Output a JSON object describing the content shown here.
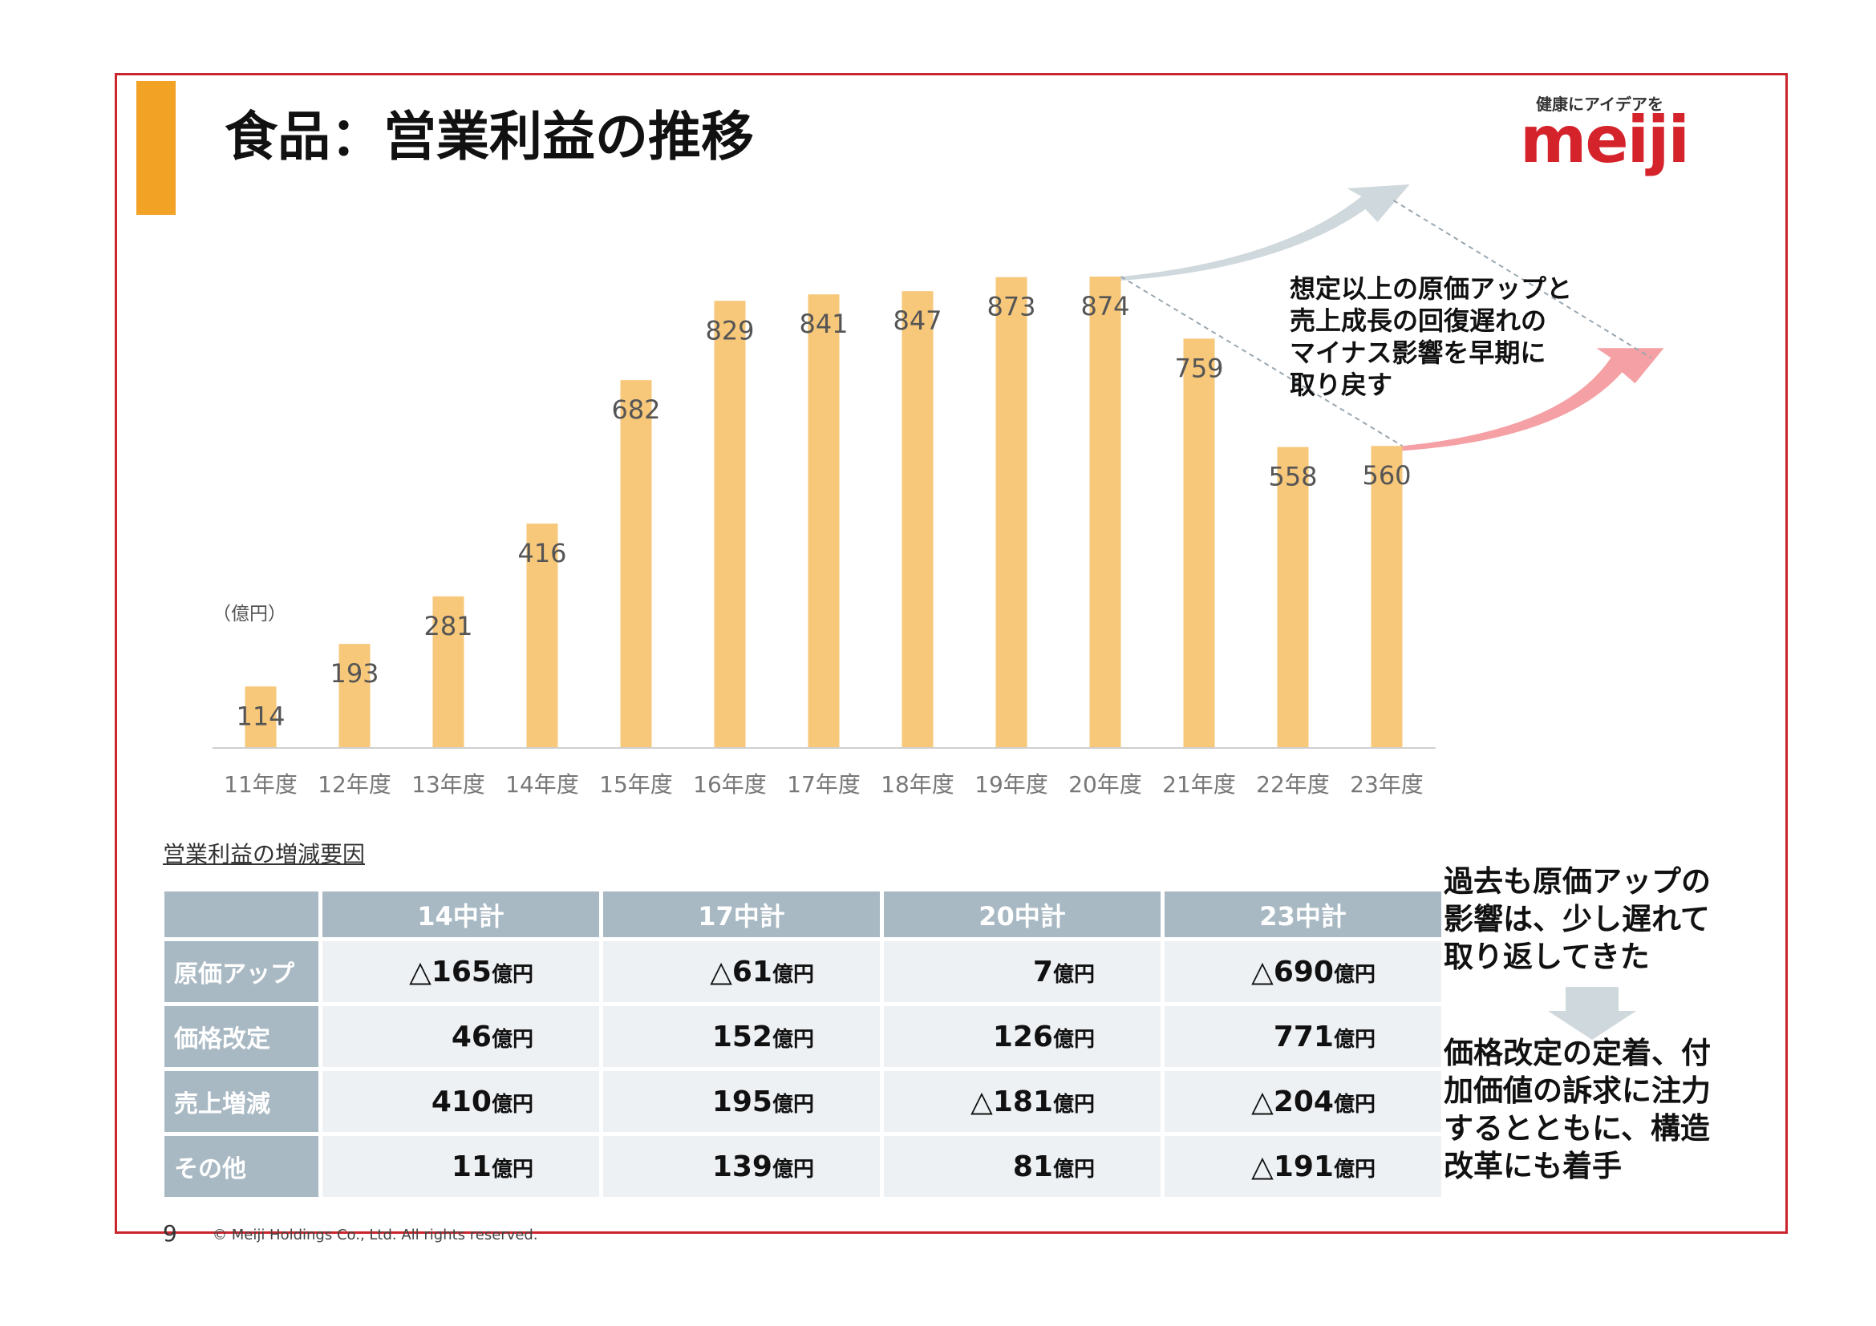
{
  "title": "食品：営業利益の推移",
  "logo": {
    "tagline": "健康にアイデアを",
    "brand": "meiji"
  },
  "colors": {
    "frame": "#c9252c",
    "accent_bar": "#f2a325",
    "bar": "#f7c77a",
    "table_header": "#a9b9c4",
    "table_cell": "#eef1f4",
    "logo": "#d5232c",
    "arrow_up_gray": "#cfd8dc",
    "arrow_up_red": "#f4a0a4"
  },
  "chart_unit": "（億円）",
  "chart_data": {
    "type": "bar",
    "categories": [
      "11年度",
      "12年度",
      "13年度",
      "14年度",
      "15年度",
      "16年度",
      "17年度",
      "18年度",
      "19年度",
      "20年度",
      "21年度",
      "22年度",
      "23年度"
    ],
    "values": [
      114,
      193,
      281,
      416,
      682,
      829,
      841,
      847,
      873,
      874,
      759,
      558,
      560
    ],
    "ylim": [
      0,
      874
    ]
  },
  "callout": "想定以上の原価アップと\n売上成長の回復遅れの\nマイナス影響を早期に\n取り戻す",
  "table": {
    "caption": "営業利益の増減要因",
    "columns": [
      "14中計",
      "17中計",
      "20中計",
      "23中計"
    ],
    "rows": [
      {
        "label": "原価アップ",
        "cells": [
          {
            "v": "△165",
            "u": "億円"
          },
          {
            "v": "△61",
            "u": "億円"
          },
          {
            "v": "7",
            "u": "億円"
          },
          {
            "v": "△690",
            "u": "億円"
          }
        ]
      },
      {
        "label": "価格改定",
        "cells": [
          {
            "v": "46",
            "u": "億円"
          },
          {
            "v": "152",
            "u": "億円"
          },
          {
            "v": "126",
            "u": "億円"
          },
          {
            "v": "771",
            "u": "億円"
          }
        ]
      },
      {
        "label": "売上増減",
        "cells": [
          {
            "v": "410",
            "u": "億円"
          },
          {
            "v": "195",
            "u": "億円"
          },
          {
            "v": "△181",
            "u": "億円"
          },
          {
            "v": "△204",
            "u": "億円"
          }
        ]
      },
      {
        "label": "その他",
        "cells": [
          {
            "v": "11",
            "u": "億円"
          },
          {
            "v": "139",
            "u": "億円"
          },
          {
            "v": "81",
            "u": "億円"
          },
          {
            "v": "△191",
            "u": "億円"
          }
        ]
      }
    ]
  },
  "side_note_top": "過去も原価アップの\n影響は、少し遅れて\n取り返してきた",
  "side_note_bottom": "価格改定の定着、付\n加価値の訴求に注力\nするとともに、構造\n改革にも着手",
  "page_number": "9",
  "copyright": "© Meiji Holdings Co., Ltd. All rights reserved."
}
